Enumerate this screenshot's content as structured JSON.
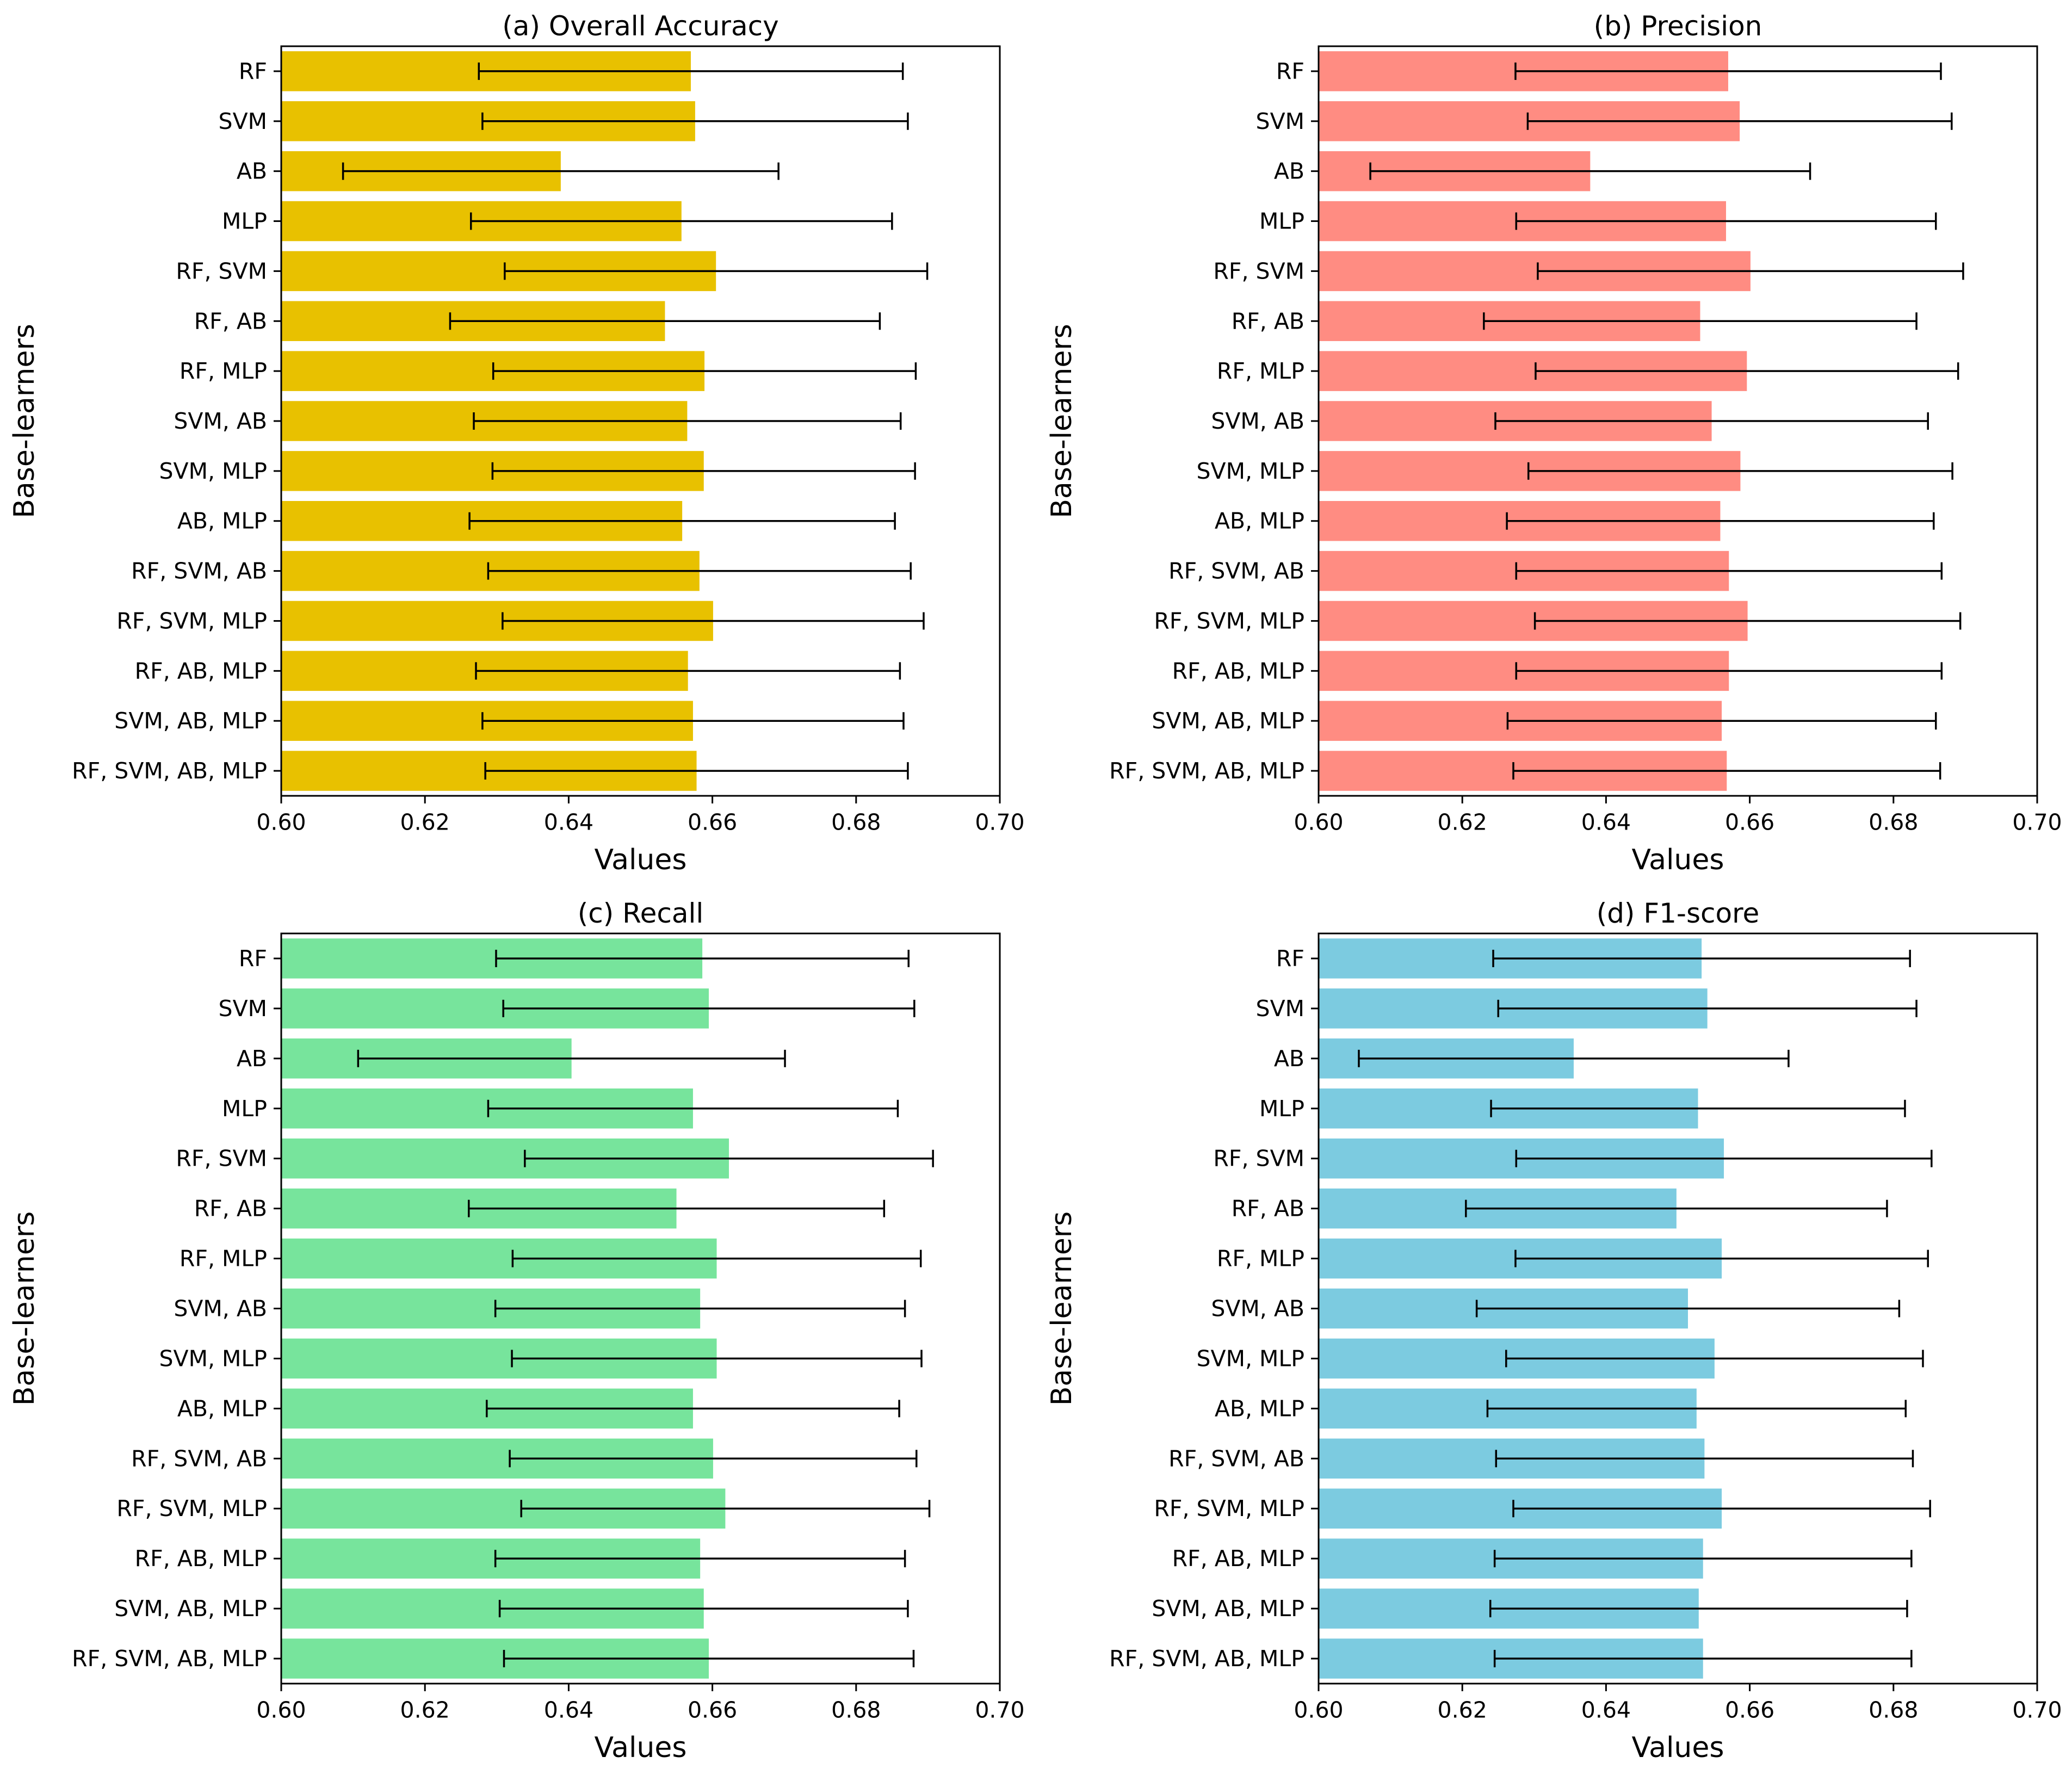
{
  "chart_data": [
    {
      "type": "bar",
      "orientation": "horizontal",
      "title": "(a) Overall Accuracy",
      "xlabel": "Values",
      "ylabel": "Base-learners",
      "xlim": [
        0.6,
        0.7
      ],
      "xticks": [
        "0.60",
        "0.62",
        "0.64",
        "0.66",
        "0.68",
        "0.70"
      ],
      "color": "#e8c100",
      "categories": [
        "RF",
        "SVM",
        "AB",
        "MLP",
        "RF, SVM",
        "RF, AB",
        "RF, MLP",
        "SVM, AB",
        "SVM, MLP",
        "AB, MLP",
        "RF, SVM, AB",
        "RF, SVM, MLP",
        "RF, AB, MLP",
        "SVM, AB, MLP",
        "RF, SVM, AB, MLP"
      ],
      "values": [
        0.657,
        0.6576,
        0.6389,
        0.6557,
        0.6605,
        0.6534,
        0.6589,
        0.6565,
        0.6588,
        0.6558,
        0.6582,
        0.6601,
        0.6566,
        0.6573,
        0.6578
      ],
      "error": [
        0.0295,
        0.0296,
        0.0303,
        0.0293,
        0.0294,
        0.0299,
        0.0294,
        0.0297,
        0.0294,
        0.0296,
        0.0294,
        0.0293,
        0.0295,
        0.0293,
        0.0294
      ]
    },
    {
      "type": "bar",
      "orientation": "horizontal",
      "title": "(b) Precision",
      "xlabel": "Values",
      "ylabel": "Base-learners",
      "xlim": [
        0.6,
        0.7
      ],
      "xticks": [
        "0.60",
        "0.62",
        "0.64",
        "0.66",
        "0.68",
        "0.70"
      ],
      "color": "#ff8c82",
      "categories": [
        "RF",
        "SVM",
        "AB",
        "MLP",
        "RF, SVM",
        "RF, AB",
        "RF, MLP",
        "SVM, AB",
        "SVM, MLP",
        "AB, MLP",
        "RF, SVM, AB",
        "RF, SVM, MLP",
        "RF, AB, MLP",
        "SVM, AB, MLP",
        "RF, SVM, AB, MLP"
      ],
      "values": [
        0.657,
        0.6586,
        0.6378,
        0.6567,
        0.6601,
        0.6531,
        0.6596,
        0.6547,
        0.6587,
        0.6559,
        0.6571,
        0.6597,
        0.6571,
        0.6561,
        0.6568
      ],
      "error": [
        0.0296,
        0.0295,
        0.0306,
        0.0292,
        0.0296,
        0.0301,
        0.0294,
        0.0301,
        0.0295,
        0.0297,
        0.0296,
        0.0296,
        0.0296,
        0.0298,
        0.0297
      ]
    },
    {
      "type": "bar",
      "orientation": "horizontal",
      "title": "(c) Recall",
      "xlabel": "Values",
      "ylabel": "Base-learners",
      "xlim": [
        0.6,
        0.7
      ],
      "xticks": [
        "0.60",
        "0.62",
        "0.64",
        "0.66",
        "0.68",
        "0.70"
      ],
      "color": "#77e49c",
      "categories": [
        "RF",
        "SVM",
        "AB",
        "MLP",
        "RF, SVM",
        "RF, AB",
        "RF, MLP",
        "SVM, AB",
        "SVM, MLP",
        "AB, MLP",
        "RF, SVM, AB",
        "RF, SVM, MLP",
        "RF, AB, MLP",
        "SVM, AB, MLP",
        "RF, SVM, AB, MLP"
      ],
      "values": [
        0.6586,
        0.6595,
        0.6404,
        0.6573,
        0.6623,
        0.655,
        0.6606,
        0.6583,
        0.6606,
        0.6573,
        0.6601,
        0.6618,
        0.6583,
        0.6588,
        0.6595
      ],
      "error": [
        0.0287,
        0.0286,
        0.0297,
        0.0285,
        0.0284,
        0.0289,
        0.0284,
        0.0285,
        0.0285,
        0.0287,
        0.0283,
        0.0284,
        0.0285,
        0.0284,
        0.0285
      ]
    },
    {
      "type": "bar",
      "orientation": "horizontal",
      "title": "(d) F1-score",
      "xlabel": "Values",
      "ylabel": "Base-learners",
      "xlim": [
        0.6,
        0.7
      ],
      "xticks": [
        "0.60",
        "0.62",
        "0.64",
        "0.66",
        "0.68",
        "0.70"
      ],
      "color": "#7ccbe0",
      "categories": [
        "RF",
        "SVM",
        "AB",
        "MLP",
        "RF, SVM",
        "RF, AB",
        "RF, MLP",
        "SVM, AB",
        "SVM, MLP",
        "AB, MLP",
        "RF, SVM, AB",
        "RF, SVM, MLP",
        "RF, AB, MLP",
        "SVM, AB, MLP",
        "RF, SVM, AB, MLP"
      ],
      "values": [
        0.6533,
        0.6541,
        0.6355,
        0.6528,
        0.6564,
        0.6498,
        0.6561,
        0.6514,
        0.6551,
        0.6526,
        0.6537,
        0.6561,
        0.6535,
        0.6529,
        0.6535
      ],
      "error": [
        0.029,
        0.0291,
        0.0299,
        0.0288,
        0.0289,
        0.0293,
        0.0287,
        0.0294,
        0.029,
        0.0291,
        0.029,
        0.029,
        0.029,
        0.029,
        0.029
      ]
    }
  ]
}
